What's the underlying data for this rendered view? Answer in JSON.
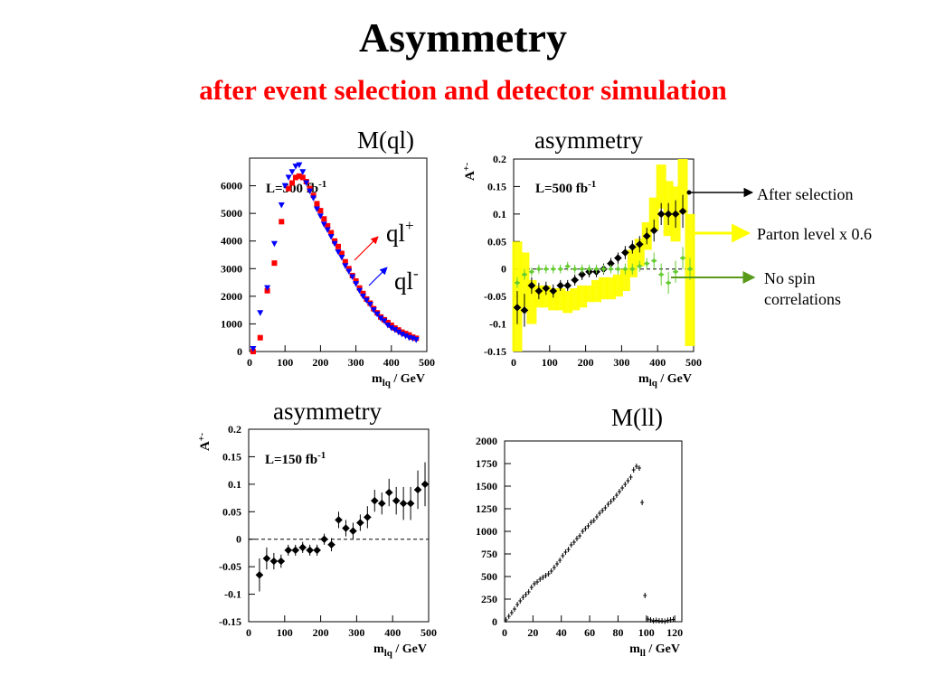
{
  "slide": {
    "title": "Asymmetry",
    "subtitle": "after event selection and detector simulation"
  },
  "panel_labels": {
    "mql": "M(ql)",
    "asym_top": "asymmetry",
    "asym_bottom": "asymmetry",
    "mll": "M(ll)"
  },
  "annotations": {
    "after_selection": "After selection",
    "parton_level": "Parton level x 0.6",
    "no_spin": "No spin correlations",
    "no_spin_lines": [
      "No spin",
      "correlations"
    ],
    "ql_plus": "ql",
    "ql_plus_sup": "+",
    "ql_minus": "ql",
    "ql_minus_sup": "-"
  },
  "colors": {
    "title": "#000000",
    "subtitle": "#ff0000",
    "ql_plus": "#ff0000",
    "ql_minus": "#0000ff",
    "after_selection": "#000000",
    "parton_level": "#ffff00",
    "no_spin": "#66cc33",
    "no_spin_arrow": "#5a9a1a"
  },
  "chart_data": [
    {
      "id": "mql",
      "type": "scatter",
      "xlabel": "m_lq / GeV",
      "ylabel": "",
      "xlim": [
        0,
        500
      ],
      "ylim": [
        0,
        7000
      ],
      "xticks": [
        0,
        100,
        200,
        300,
        400,
        500
      ],
      "yticks": [
        0,
        1000,
        2000,
        3000,
        4000,
        5000,
        6000
      ],
      "lumi_label": "L=500 fb",
      "lumi_sup": "-1",
      "series": [
        {
          "name": "ql+",
          "marker": "square",
          "color": "#ff0000",
          "x": [
            10,
            30,
            50,
            70,
            90,
            110,
            120,
            130,
            140,
            150,
            160,
            170,
            180,
            190,
            200,
            210,
            220,
            230,
            240,
            250,
            260,
            270,
            280,
            290,
            300,
            310,
            320,
            330,
            340,
            350,
            360,
            370,
            380,
            390,
            400,
            410,
            420,
            430,
            440,
            450,
            460,
            470
          ],
          "y": [
            0,
            500,
            2200,
            3200,
            4700,
            5900,
            6100,
            6300,
            6350,
            6300,
            6150,
            5900,
            5650,
            5350,
            5100,
            4800,
            4550,
            4300,
            4000,
            3800,
            3550,
            3250,
            3000,
            2750,
            2550,
            2300,
            2100,
            1900,
            1750,
            1550,
            1400,
            1250,
            1150,
            1050,
            950,
            850,
            780,
            700,
            650,
            600,
            520,
            480
          ]
        },
        {
          "name": "ql-",
          "marker": "triangle-down",
          "color": "#0000ff",
          "x": [
            10,
            30,
            50,
            70,
            90,
            100,
            110,
            120,
            130,
            140,
            150,
            160,
            170,
            180,
            190,
            200,
            210,
            220,
            230,
            240,
            250,
            260,
            270,
            280,
            290,
            300,
            310,
            320,
            330,
            340,
            350,
            360,
            370,
            380,
            390,
            400,
            410,
            420,
            430,
            440,
            450,
            460,
            470
          ],
          "y": [
            100,
            1400,
            2300,
            3900,
            5300,
            6000,
            6300,
            6500,
            6700,
            6750,
            6500,
            6100,
            5800,
            5550,
            5150,
            4900,
            4600,
            4400,
            4150,
            3900,
            3600,
            3400,
            3100,
            2900,
            2700,
            2450,
            2200,
            2000,
            1850,
            1700,
            1500,
            1350,
            1200,
            1100,
            950,
            850,
            780,
            700,
            620,
            560,
            500,
            470,
            420
          ]
        }
      ]
    },
    {
      "id": "asym_500",
      "type": "scatter",
      "xlabel": "m_lq / GeV",
      "ylabel": "A+-",
      "xlim": [
        0,
        500
      ],
      "ylim": [
        -0.15,
        0.2
      ],
      "xticks": [
        0,
        100,
        200,
        300,
        400,
        500
      ],
      "yticks": [
        -0.15,
        -0.1,
        -0.05,
        0,
        0.05,
        0.1,
        0.15,
        0.2
      ],
      "reference_line": 0,
      "lumi_label": "L=500 fb",
      "lumi_sup": "-1",
      "series": [
        {
          "name": "After selection",
          "color": "#000000",
          "x": [
            10,
            30,
            50,
            70,
            90,
            110,
            130,
            150,
            170,
            190,
            210,
            230,
            250,
            270,
            290,
            310,
            330,
            350,
            370,
            390,
            410,
            430,
            450,
            470
          ],
          "y": [
            -0.07,
            -0.075,
            -0.03,
            -0.04,
            -0.035,
            -0.04,
            -0.03,
            -0.03,
            -0.02,
            -0.01,
            -0.005,
            -0.005,
            0.0,
            0.01,
            0.02,
            0.03,
            0.04,
            0.045,
            0.06,
            0.07,
            0.1,
            0.1,
            0.1,
            0.105
          ],
          "err": [
            0.03,
            0.03,
            0.015,
            0.015,
            0.012,
            0.012,
            0.01,
            0.01,
            0.01,
            0.01,
            0.01,
            0.01,
            0.01,
            0.01,
            0.01,
            0.012,
            0.012,
            0.015,
            0.015,
            0.02,
            0.02,
            0.02,
            0.025,
            0.03
          ]
        },
        {
          "name": "Parton level x 0.6",
          "color": "#ffff00",
          "x": [
            10,
            30,
            50,
            70,
            90,
            110,
            130,
            150,
            170,
            190,
            210,
            230,
            250,
            270,
            290,
            310,
            330,
            350,
            370,
            390,
            410,
            430,
            450,
            470,
            490
          ],
          "y": [
            -0.05,
            -0.02,
            -0.06,
            -0.05,
            -0.05,
            -0.055,
            -0.055,
            -0.06,
            -0.055,
            -0.05,
            -0.045,
            -0.04,
            -0.035,
            -0.035,
            -0.03,
            -0.02,
            0.01,
            0.03,
            0.06,
            0.1,
            0.15,
            0.11,
            0.1,
            0.15,
            -0.02
          ],
          "err": [
            0.1,
            0.05,
            0.04,
            0.02,
            0.02,
            0.02,
            0.02,
            0.02,
            0.02,
            0.02,
            0.015,
            0.02,
            0.02,
            0.02,
            0.02,
            0.02,
            0.025,
            0.025,
            0.025,
            0.03,
            0.04,
            0.05,
            0.05,
            0.05,
            0.12
          ]
        },
        {
          "name": "No spin correlations",
          "color": "#66cc33",
          "x": [
            10,
            30,
            50,
            70,
            90,
            110,
            130,
            150,
            170,
            190,
            210,
            230,
            250,
            270,
            290,
            310,
            330,
            350,
            370,
            390,
            410,
            430,
            450,
            470,
            490
          ],
          "y": [
            -0.025,
            -0.01,
            -0.005,
            0.0,
            0.0,
            0.0,
            0.0,
            0.005,
            0.0,
            0.0,
            0.0,
            0.0,
            0.0,
            0.0,
            0.0,
            0.0,
            0.0,
            0.005,
            0.01,
            0.015,
            -0.01,
            -0.025,
            -0.005,
            0.02,
            0.0
          ],
          "err": [
            0.01,
            0.01,
            0.008,
            0.008,
            0.008,
            0.008,
            0.008,
            0.008,
            0.008,
            0.008,
            0.008,
            0.008,
            0.008,
            0.008,
            0.01,
            0.01,
            0.01,
            0.01,
            0.01,
            0.015,
            0.02,
            0.02,
            0.02,
            0.02,
            0.02
          ]
        }
      ]
    },
    {
      "id": "asym_150",
      "type": "scatter",
      "xlabel": "m_lq / GeV",
      "ylabel": "A+-",
      "xlim": [
        0,
        500
      ],
      "ylim": [
        -0.15,
        0.2
      ],
      "xticks": [
        0,
        100,
        200,
        300,
        400,
        500
      ],
      "yticks": [
        -0.15,
        -0.1,
        -0.05,
        0,
        0.05,
        0.1,
        0.15,
        0.2
      ],
      "reference_line": 0,
      "lumi_label": "L=150 fb",
      "lumi_sup": "-1",
      "series": [
        {
          "name": "",
          "color": "#000000",
          "x": [
            30,
            50,
            70,
            90,
            110,
            130,
            150,
            170,
            190,
            210,
            230,
            250,
            270,
            290,
            310,
            330,
            350,
            370,
            390,
            410,
            430,
            450,
            470,
            490
          ],
          "y": [
            -0.065,
            -0.035,
            -0.04,
            -0.04,
            -0.02,
            -0.02,
            -0.015,
            -0.02,
            -0.02,
            0.0,
            -0.01,
            0.035,
            0.02,
            0.015,
            0.03,
            0.04,
            0.07,
            0.065,
            0.085,
            0.07,
            0.065,
            0.065,
            0.09,
            0.1
          ],
          "err": [
            0.03,
            0.02,
            0.015,
            0.012,
            0.01,
            0.01,
            0.01,
            0.01,
            0.01,
            0.01,
            0.012,
            0.015,
            0.015,
            0.015,
            0.015,
            0.02,
            0.02,
            0.02,
            0.025,
            0.025,
            0.03,
            0.03,
            0.035,
            0.04
          ]
        }
      ]
    },
    {
      "id": "mll",
      "type": "scatter",
      "xlabel": "m_ll / GeV",
      "ylabel": "",
      "xlim": [
        0,
        125
      ],
      "ylim": [
        0,
        2000
      ],
      "xticks": [
        0,
        20,
        40,
        60,
        80,
        100,
        120
      ],
      "yticks": [
        0,
        250,
        500,
        750,
        1000,
        1250,
        1500,
        1750,
        2000
      ],
      "series": [
        {
          "name": "",
          "color": "#000000",
          "x": [
            1,
            3,
            5,
            7,
            9,
            11,
            13,
            15,
            17,
            19,
            21,
            23,
            25,
            27,
            29,
            31,
            33,
            35,
            37,
            39,
            41,
            43,
            45,
            47,
            49,
            51,
            53,
            55,
            57,
            59,
            61,
            63,
            65,
            67,
            69,
            71,
            73,
            75,
            77,
            79,
            81,
            83,
            85,
            87,
            89,
            91,
            93,
            95,
            97,
            99,
            101,
            103,
            105,
            107,
            109,
            111,
            113,
            115,
            117,
            119
          ],
          "y": [
            20,
            60,
            100,
            140,
            190,
            230,
            270,
            300,
            330,
            380,
            420,
            440,
            470,
            490,
            510,
            530,
            560,
            600,
            640,
            680,
            730,
            770,
            800,
            850,
            880,
            920,
            950,
            1000,
            1030,
            1060,
            1100,
            1120,
            1160,
            1200,
            1230,
            1260,
            1300,
            1330,
            1360,
            1400,
            1440,
            1480,
            1520,
            1560,
            1600,
            1680,
            1720,
            1700,
            1320,
            290,
            30,
            20,
            10,
            15,
            10,
            10,
            5,
            15,
            20,
            25
          ]
        }
      ]
    }
  ]
}
